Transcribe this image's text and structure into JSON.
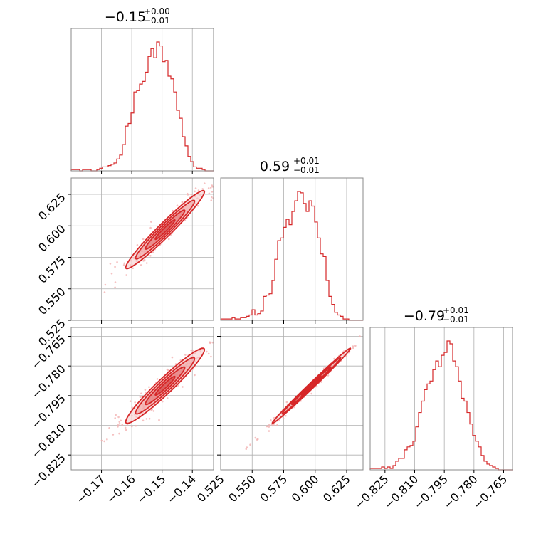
{
  "chart_data": {
    "type": "corner",
    "color": "#d62728",
    "parameters": [
      {
        "title_value": "−0.15",
        "title_plus": "+0.00",
        "title_minus": "−0.01",
        "range": [
          -0.18,
          -0.133
        ],
        "ticks": [
          -0.17,
          -0.16,
          -0.15,
          -0.14
        ],
        "tick_labels": [
          "−0.17",
          "−0.16",
          "−0.15",
          "−0.14"
        ],
        "hist": [
          1,
          1,
          1,
          0,
          1,
          1,
          1,
          0,
          0,
          1,
          2,
          3,
          3,
          4,
          5,
          6,
          9,
          12,
          20,
          34,
          36,
          44,
          60,
          61,
          66,
          68,
          75,
          87,
          93,
          86,
          98,
          95,
          83,
          84,
          72,
          70,
          60,
          46,
          40,
          26,
          19,
          11,
          7,
          3,
          2,
          2,
          1,
          0,
          0,
          0
        ]
      },
      {
        "title_value": "0.59",
        "title_plus": "+0.01",
        "title_minus": "−0.01",
        "range": [
          0.525,
          0.638
        ],
        "ticks": [
          0.55,
          0.575,
          0.6,
          0.625
        ],
        "tick_labels": [
          "0.550",
          "0.575",
          "0.600",
          "0.625"
        ],
        "bottom_tick_labels": [
          "0.525",
          "0.550",
          "0.575",
          "0.600",
          "0.625"
        ],
        "bottom_ticks": [
          0.525,
          0.55,
          0.575,
          0.6,
          0.625
        ],
        "left_tick_labels": [
          "0.525",
          "0.550",
          "0.575",
          "0.600",
          "0.625"
        ],
        "left_ticks": [
          0.525,
          0.55,
          0.575,
          0.6,
          0.625
        ],
        "hist": [
          1,
          1,
          1,
          1,
          2,
          1,
          1,
          2,
          2,
          3,
          4,
          8,
          4,
          5,
          7,
          18,
          19,
          20,
          30,
          46,
          60,
          62,
          70,
          76,
          72,
          82,
          90,
          97,
          96,
          88,
          82,
          90,
          86,
          74,
          62,
          50,
          48,
          30,
          18,
          12,
          6,
          4,
          3,
          1,
          1,
          0,
          0,
          0,
          0,
          0
        ]
      },
      {
        "title_value": "−0.79",
        "title_plus": "+0.01",
        "title_minus": "−0.01",
        "range": [
          -0.8325,
          -0.7605
        ],
        "ticks": [
          -0.825,
          -0.81,
          -0.795,
          -0.78,
          -0.765
        ],
        "tick_labels": [
          "−0.825",
          "−0.810",
          "−0.795",
          "−0.780",
          "−0.765"
        ],
        "hist": [
          1,
          1,
          1,
          1,
          2,
          1,
          2,
          1,
          3,
          6,
          8,
          8,
          14,
          16,
          17,
          20,
          30,
          40,
          48,
          56,
          60,
          62,
          70,
          76,
          72,
          80,
          82,
          90,
          88,
          76,
          72,
          62,
          50,
          48,
          40,
          32,
          24,
          20,
          16,
          10,
          6,
          4,
          3,
          2,
          1,
          0,
          0,
          0,
          0,
          0
        ]
      }
    ],
    "pairs": [
      {
        "row": 1,
        "col": 0,
        "corr": 0.97
      },
      {
        "row": 2,
        "col": 0,
        "corr": 0.96
      },
      {
        "row": 2,
        "col": 1,
        "corr": 0.995
      }
    ],
    "grid": true
  }
}
